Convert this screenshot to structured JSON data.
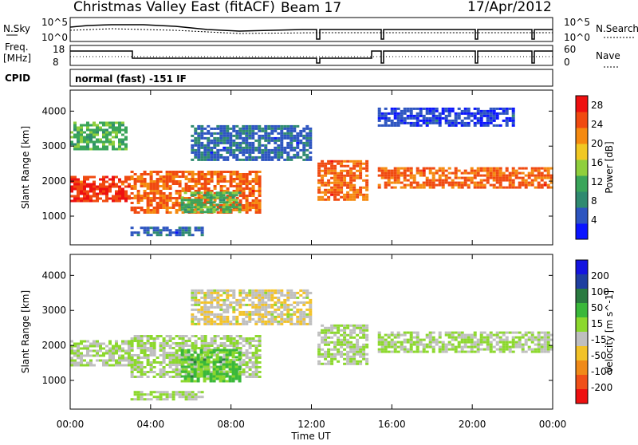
{
  "header": {
    "title": "Christmas Valley East (fitACF)",
    "beam": "Beam 17",
    "date": "17/Apr/2012"
  },
  "panels": {
    "nsky": {
      "label": "N.Sky",
      "scale_top": "10^5",
      "scale_bottom": "10^0"
    },
    "nsearch": {
      "label": "N.Search",
      "scale_top": "10^5",
      "scale_bottom": "10^0"
    },
    "freq": {
      "label_line1": "Freq.",
      "label_line2": "[MHz]",
      "scale_top": "18",
      "scale_bottom": "8"
    },
    "nave": {
      "label": "Nave",
      "scale_top": "60",
      "scale_bottom": "0"
    },
    "cpid": {
      "label": "CPID",
      "value": "normal (fast) -151 IF"
    }
  },
  "colors": {
    "power": [
      "#0a14ff",
      "#2d55c0",
      "#2f8a70",
      "#3aa55a",
      "#8fcf3c",
      "#f0c823",
      "#f58a10",
      "#f04a10",
      "#ee1010"
    ],
    "velocity": [
      "#1414e0",
      "#1f3fa0",
      "#2a7a40",
      "#3ab83a",
      "#8cd82d",
      "#bfbfbf",
      "#f2c228",
      "#f08a18",
      "#f05018",
      "#ee1010"
    ]
  },
  "chart_data": [
    {
      "type": "heatmap",
      "title": "Power",
      "xlabel": "",
      "ylabel": "Slant Range [km]",
      "xlim": [
        "00:00",
        "00:00"
      ],
      "ylim": [
        180,
        4600
      ],
      "x_ticks": [
        "00:00",
        "04:00",
        "08:00",
        "12:00",
        "16:00",
        "20:00",
        "00:00"
      ],
      "y_ticks": [
        1000,
        2000,
        3000,
        4000
      ],
      "colorbar_label": "Power [dB]",
      "colorbar_ticks": [
        4,
        8,
        12,
        16,
        20,
        24,
        28
      ],
      "colorbar_range": [
        0,
        30
      ],
      "regions": [
        {
          "t": [
            0.0,
            3.0
          ],
          "r": [
            1450,
            2150
          ],
          "value": 26
        },
        {
          "t": [
            0.0,
            2.8
          ],
          "r": [
            2900,
            3700
          ],
          "value": 12
        },
        {
          "t": [
            3.0,
            9.5
          ],
          "r": [
            1100,
            2300
          ],
          "value": 24
        },
        {
          "t": [
            3.0,
            6.5
          ],
          "r": [
            450,
            700
          ],
          "value": 6
        },
        {
          "t": [
            6.0,
            12.0
          ],
          "r": [
            2600,
            3600
          ],
          "value": 6
        },
        {
          "t": [
            5.5,
            8.5
          ],
          "r": [
            1100,
            1700
          ],
          "value": 12
        },
        {
          "t": [
            12.3,
            14.8
          ],
          "r": [
            1500,
            2600
          ],
          "value": 24
        },
        {
          "t": [
            15.3,
            24.0
          ],
          "r": [
            1800,
            2400
          ],
          "value": 24
        },
        {
          "t": [
            15.3,
            22.0
          ],
          "r": [
            3600,
            4100
          ],
          "value": 4
        }
      ]
    },
    {
      "type": "heatmap",
      "title": "Velocity",
      "xlabel": "Time UT",
      "ylabel": "Slant Range [km]",
      "xlim": [
        "00:00",
        "00:00"
      ],
      "ylim": [
        180,
        4600
      ],
      "x_ticks": [
        "00:00",
        "04:00",
        "08:00",
        "12:00",
        "16:00",
        "20:00",
        "00:00"
      ],
      "y_ticks": [
        1000,
        2000,
        3000,
        4000
      ],
      "colorbar_label": "Velocity [m s^-1]",
      "colorbar_ticks": [
        200,
        100,
        50,
        15,
        -15,
        -50,
        -100,
        -200
      ],
      "colorbar_range": [
        -250,
        250
      ],
      "regions": [
        {
          "t": [
            0.0,
            3.0
          ],
          "r": [
            1450,
            2150
          ],
          "value": 0
        },
        {
          "t": [
            3.0,
            9.5
          ],
          "r": [
            1100,
            2300
          ],
          "value": 0
        },
        {
          "t": [
            5.5,
            8.5
          ],
          "r": [
            1000,
            1900
          ],
          "value": 60
        },
        {
          "t": [
            6.0,
            12.0
          ],
          "r": [
            2600,
            3600
          ],
          "value": -40
        },
        {
          "t": [
            12.3,
            14.8
          ],
          "r": [
            1500,
            2600
          ],
          "value": 0
        },
        {
          "t": [
            15.3,
            24.0
          ],
          "r": [
            1800,
            2400
          ],
          "value": 0
        },
        {
          "t": [
            3.0,
            6.5
          ],
          "r": [
            450,
            700
          ],
          "value": 0
        }
      ]
    }
  ]
}
